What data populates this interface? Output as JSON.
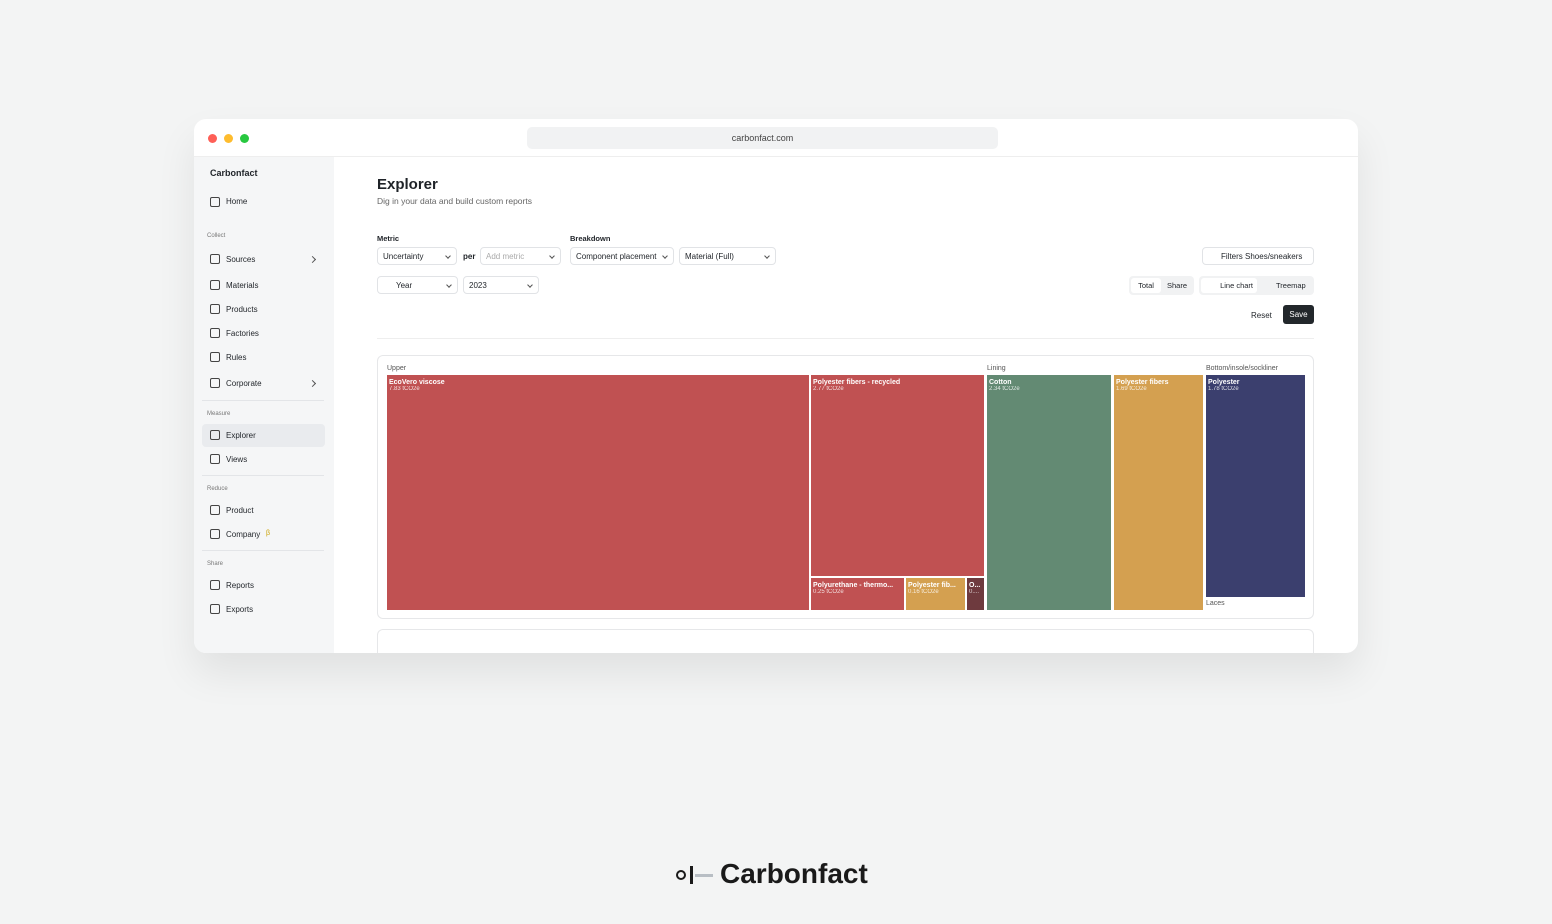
{
  "browser": {
    "url": "carbonfact.com"
  },
  "sidebar": {
    "brand": "Carbonfact",
    "home": "Home",
    "sections": [
      {
        "title": "Collect",
        "items": [
          "Sources",
          "Materials",
          "Products",
          "Factories",
          "Rules",
          "Corporate"
        ]
      },
      {
        "title": "Measure",
        "items": [
          "Explorer",
          "Views"
        ]
      },
      {
        "title": "Reduce",
        "items": [
          "Product",
          "Company"
        ]
      },
      {
        "title": "Share",
        "items": [
          "Reports",
          "Exports"
        ]
      }
    ],
    "beta": "β"
  },
  "header": {
    "title": "Explorer",
    "subtitle": "Dig in your data and build custom reports"
  },
  "controls": {
    "metric_label": "Metric",
    "metric": "Uncertainty",
    "per": "per",
    "add_metric": "Add metric",
    "breakdown_label": "Breakdown",
    "breakdown_1": "Component placement",
    "breakdown_2": "Material (Full)",
    "filters": "Filters",
    "filter_value": "Shoes/sneakers",
    "period": "Year",
    "year": "2023",
    "total": "Total",
    "share": "Share",
    "line_chart": "Line chart",
    "treemap": "Treemap",
    "reset": "Reset",
    "save": "Save"
  },
  "treemap": {
    "groups": [
      {
        "name": "Upper",
        "tiles": [
          {
            "label": "EcoVero viscose",
            "value_label": "7.83 tCO2e",
            "color": "#c05152"
          },
          {
            "label": "Polyester fibers - recycled",
            "value_label": "2.77 tCO2e",
            "color": "#c05152"
          },
          {
            "label": "Polyurethane - thermo...",
            "value_label": "0.25 tCO2e",
            "color": "#c05152"
          },
          {
            "label": "Polyester fib...",
            "value_label": "0.16 tCO2e",
            "color": "#d4a050"
          },
          {
            "label": "O...",
            "value_label": "0....",
            "color": "#6e3a3e"
          }
        ]
      },
      {
        "name": "Lining",
        "tiles": [
          {
            "label": "Cotton",
            "value_label": "2.34 tCO2e",
            "color": "#638a73"
          },
          {
            "label": "Polyester fibers",
            "value_label": "1.69 tCO2e",
            "color": "#d4a050"
          }
        ]
      },
      {
        "name": "Bottom/insole/sockliner",
        "tiles": [
          {
            "label": "Polyester",
            "value_label": "1.78 tCO2e",
            "color": "#3b3f6e"
          }
        ]
      },
      {
        "name": "Laces",
        "tiles": []
      }
    ]
  },
  "footer": {
    "brand": "Carbonfact"
  }
}
